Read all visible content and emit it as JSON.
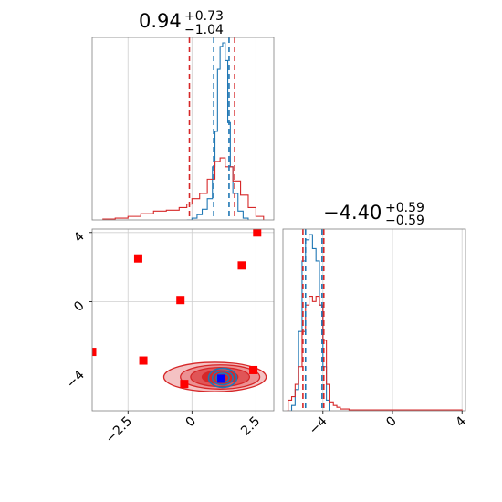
{
  "chart_data": [
    {
      "type": "histogram",
      "panel": "marginal-x",
      "title": {
        "value": "0.94",
        "plus": "+0.73",
        "minus": "−1.04"
      },
      "xlim": [
        -3.9,
        3.2
      ],
      "xticks": [
        -2.5,
        0.0,
        2.5
      ],
      "series": [
        {
          "color": "#1f77b4",
          "bins": [
            [
              -0.2,
              0.0
            ],
            [
              0.0,
              0.01
            ],
            [
              0.2,
              0.03
            ],
            [
              0.4,
              0.06
            ],
            [
              0.6,
              0.12
            ],
            [
              0.8,
              0.3
            ],
            [
              0.9,
              0.5
            ],
            [
              1.0,
              0.85
            ],
            [
              1.1,
              0.98
            ],
            [
              1.2,
              1.0
            ],
            [
              1.3,
              0.9
            ],
            [
              1.4,
              0.55
            ],
            [
              1.5,
              0.3
            ],
            [
              1.6,
              0.15
            ],
            [
              1.8,
              0.05
            ],
            [
              2.0,
              0.01
            ],
            [
              2.2,
              0.0
            ]
          ],
          "lines": [
            0.85,
            1.45
          ]
        },
        {
          "color": "#d62728",
          "bins": [
            [
              -3.5,
              0.005
            ],
            [
              -3.0,
              0.01
            ],
            [
              -2.5,
              0.02
            ],
            [
              -2.0,
              0.035
            ],
            [
              -1.5,
              0.05
            ],
            [
              -1.0,
              0.055
            ],
            [
              -0.5,
              0.07
            ],
            [
              -0.2,
              0.09
            ],
            [
              0.0,
              0.12
            ],
            [
              0.3,
              0.15
            ],
            [
              0.6,
              0.23
            ],
            [
              0.9,
              0.33
            ],
            [
              1.1,
              0.35
            ],
            [
              1.3,
              0.3
            ],
            [
              1.6,
              0.22
            ],
            [
              1.9,
              0.14
            ],
            [
              2.2,
              0.07
            ],
            [
              2.5,
              0.02
            ],
            [
              2.8,
              0.0
            ]
          ],
          "lines": [
            -0.1,
            1.67
          ]
        }
      ]
    },
    {
      "type": "scatter",
      "panel": "joint",
      "xlim": [
        -3.9,
        3.2
      ],
      "ylim": [
        -6.3,
        4.2
      ],
      "xticks": [
        -2.5,
        0.0,
        2.5
      ],
      "yticks": [
        -4,
        0,
        4
      ],
      "contours": [
        {
          "color": "#d62728",
          "center": [
            1.1,
            -4.35
          ],
          "levels": [
            [
              2.0,
              0.85
            ],
            [
              1.55,
              0.7
            ],
            [
              1.15,
              0.55
            ],
            [
              0.7,
              0.38
            ]
          ]
        },
        {
          "color": "#1f77b4",
          "center": [
            1.2,
            -4.4
          ],
          "levels": [
            [
              0.55,
              0.55
            ],
            [
              0.4,
              0.4
            ],
            [
              0.25,
              0.26
            ]
          ]
        }
      ],
      "points": [
        {
          "x": -2.1,
          "y": 2.5,
          "color": "#ff0000"
        },
        {
          "x": 2.55,
          "y": 4.0,
          "color": "#ff0000"
        },
        {
          "x": 1.95,
          "y": 2.1,
          "color": "#ff0000"
        },
        {
          "x": -0.45,
          "y": 0.1,
          "color": "#ff0000"
        },
        {
          "x": -3.9,
          "y": -2.9,
          "color": "#ff0000"
        },
        {
          "x": -1.9,
          "y": -3.4,
          "color": "#ff0000"
        },
        {
          "x": -0.3,
          "y": -4.75,
          "color": "#ff0000"
        },
        {
          "x": 2.4,
          "y": -3.95,
          "color": "#ff0000"
        },
        {
          "x": 1.15,
          "y": -4.45,
          "color": "#0000ff"
        }
      ]
    },
    {
      "type": "histogram",
      "panel": "marginal-y",
      "title": {
        "value": "−4.40",
        "plus": "+0.59",
        "minus": "−0.59"
      },
      "xlim": [
        -6.3,
        4.2
      ],
      "xticks": [
        -4,
        0,
        4
      ],
      "series": [
        {
          "color": "#1f77b4",
          "bins": [
            [
              -6.0,
              0.0
            ],
            [
              -5.8,
              0.03
            ],
            [
              -5.6,
              0.12
            ],
            [
              -5.4,
              0.45
            ],
            [
              -5.2,
              0.85
            ],
            [
              -5.0,
              0.97
            ],
            [
              -4.8,
              1.0
            ],
            [
              -4.6,
              0.92
            ],
            [
              -4.4,
              0.85
            ],
            [
              -4.2,
              0.6
            ],
            [
              -4.0,
              0.25
            ],
            [
              -3.8,
              0.06
            ],
            [
              -3.6,
              0.0
            ]
          ],
          "lines": [
            -5.0,
            -4.05
          ]
        },
        {
          "color": "#d62728",
          "bins": [
            [
              -6.1,
              0.0
            ],
            [
              -6.0,
              0.06
            ],
            [
              -5.8,
              0.08
            ],
            [
              -5.6,
              0.15
            ],
            [
              -5.4,
              0.25
            ],
            [
              -5.2,
              0.45
            ],
            [
              -5.0,
              0.6
            ],
            [
              -4.8,
              0.65
            ],
            [
              -4.6,
              0.62
            ],
            [
              -4.4,
              0.65
            ],
            [
              -4.2,
              0.6
            ],
            [
              -4.0,
              0.4
            ],
            [
              -3.8,
              0.15
            ],
            [
              -3.6,
              0.05
            ],
            [
              -3.4,
              0.03
            ],
            [
              -3.2,
              0.02
            ],
            [
              -3.0,
              0.01
            ],
            [
              -2.5,
              0.005
            ],
            [
              4.0,
              0.0
            ]
          ],
          "lines": [
            -5.15,
            -3.95
          ]
        }
      ]
    }
  ]
}
